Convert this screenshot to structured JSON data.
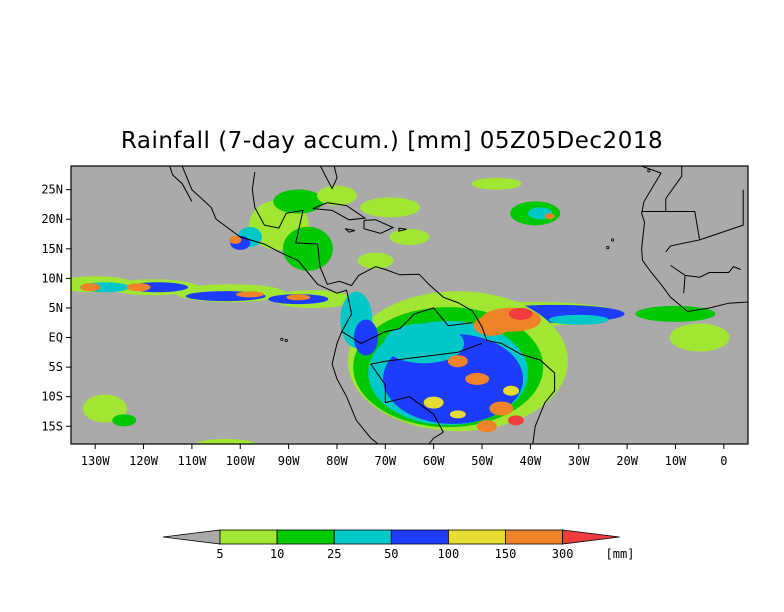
{
  "title": "Rainfall (7-day accum.) [mm] 05Z05Dec2018",
  "map": {
    "lon_range": [
      -135,
      5
    ],
    "lat_range": [
      -18,
      29
    ],
    "x_ticks": [
      {
        "value": -130,
        "label": "130W"
      },
      {
        "value": -120,
        "label": "120W"
      },
      {
        "value": -110,
        "label": "110W"
      },
      {
        "value": -100,
        "label": "100W"
      },
      {
        "value": -90,
        "label": "90W"
      },
      {
        "value": -80,
        "label": "80W"
      },
      {
        "value": -70,
        "label": "70W"
      },
      {
        "value": -60,
        "label": "60W"
      },
      {
        "value": -50,
        "label": "50W"
      },
      {
        "value": -40,
        "label": "40W"
      },
      {
        "value": -30,
        "label": "30W"
      },
      {
        "value": -20,
        "label": "20W"
      },
      {
        "value": -10,
        "label": "10W"
      },
      {
        "value": 0,
        "label": "0"
      }
    ],
    "y_ticks": [
      {
        "value": 25,
        "label": "25N"
      },
      {
        "value": 20,
        "label": "20N"
      },
      {
        "value": 15,
        "label": "15N"
      },
      {
        "value": 10,
        "label": "10N"
      },
      {
        "value": 5,
        "label": "5N"
      },
      {
        "value": 0,
        "label": "EQ"
      },
      {
        "value": -5,
        "label": "5S"
      },
      {
        "value": -10,
        "label": "10S"
      },
      {
        "value": -15,
        "label": "15S"
      }
    ],
    "background_color": "#aaaaaa"
  },
  "colorbar": {
    "unit": "[mm]",
    "labels": [
      "5",
      "10",
      "25",
      "50",
      "100",
      "150",
      "300"
    ],
    "colors": [
      "#aaaaaa",
      "#a0e632",
      "#00c800",
      "#00c8c8",
      "#1e3cff",
      "#e6dc32",
      "#f08228",
      "#f03c3c"
    ]
  }
}
